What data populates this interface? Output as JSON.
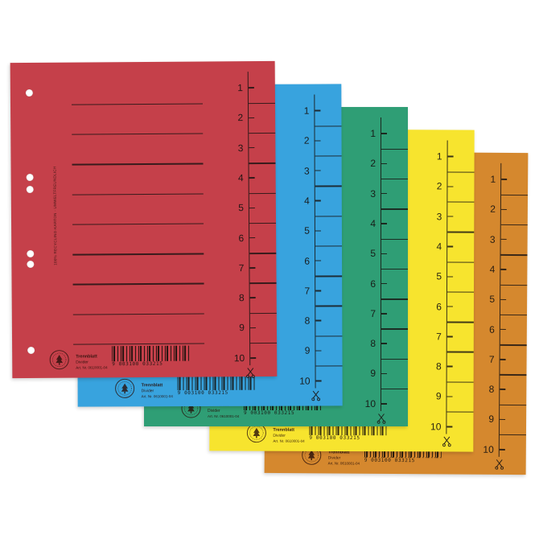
{
  "page": {
    "background": "#ffffff",
    "description": "Product photo: five fanned cardboard file dividers (red, blue, green, yellow, orange) with cut-off number tabs 1-10, ruled lines, punch holes, recycling seal and barcode"
  },
  "product": {
    "title_de": "Trennblatt",
    "title_en": "Divider",
    "art_no": "Art. Nr. 0610001-04",
    "barcode_digits": "9 003100 033215",
    "side_note": "100% RECYCLING-KARTON · UMWELTFREUNDLICH",
    "tab_numbers": [
      "1",
      "2",
      "3",
      "4",
      "5",
      "6",
      "7",
      "8",
      "9",
      "10"
    ],
    "ink_color": "#1e1a18"
  },
  "icons": {
    "seal": "recycling-tree-seal-icon",
    "scissors": "scissors-cut-icon"
  },
  "sheets": [
    {
      "id": "red",
      "color_name": "red",
      "hex": "#c5404a"
    },
    {
      "id": "blue",
      "color_name": "blue",
      "hex": "#38a3de"
    },
    {
      "id": "green",
      "color_name": "green",
      "hex": "#2f9e75"
    },
    {
      "id": "yellow",
      "color_name": "yellow",
      "hex": "#f7e42e"
    },
    {
      "id": "orange",
      "color_name": "orange",
      "hex": "#d5882e"
    }
  ]
}
